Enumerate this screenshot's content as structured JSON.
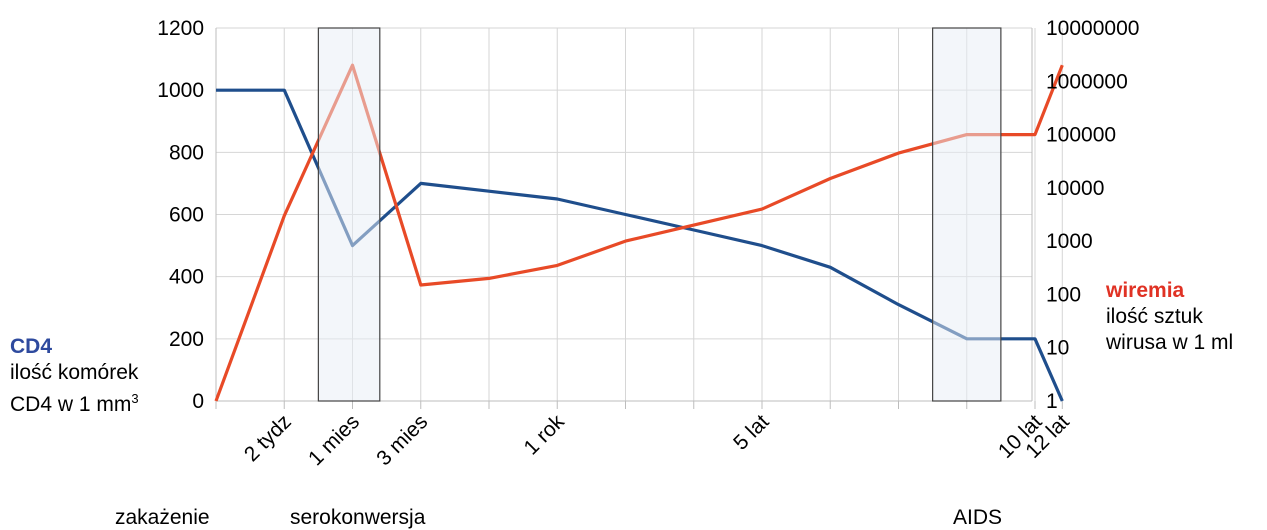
{
  "chart_data": {
    "type": "line",
    "categories": [
      "",
      "2 tydz",
      "1 mies",
      "3 mies",
      "",
      "1 rok",
      "",
      "",
      "5 lat",
      "",
      "",
      "",
      "10 lat",
      "12 lat"
    ],
    "x_positions": [
      0,
      1,
      2,
      3,
      4,
      5,
      6,
      7,
      8,
      9,
      10,
      11,
      12,
      12.4
    ],
    "series": [
      {
        "axis": "left",
        "color": "#1f4e8c",
        "x": [
          0,
          1,
          2,
          3,
          4,
          5,
          6,
          7,
          8,
          9,
          10,
          11,
          12,
          12.4
        ],
        "values": [
          1000,
          1000,
          500,
          700,
          675,
          650,
          600,
          550,
          500,
          430,
          310,
          200,
          200,
          0
        ]
      },
      {
        "axis": "right",
        "color": "#e84a27",
        "x": [
          0,
          1,
          2,
          3,
          4,
          5,
          6,
          7,
          8,
          9,
          10,
          11,
          12,
          12.4
        ],
        "values": [
          1,
          3000,
          2000000,
          150,
          200,
          350,
          1000,
          2000,
          4000,
          15000,
          45000,
          100000,
          100000,
          2000000
        ]
      }
    ],
    "y_left": {
      "ylim": [
        0,
        1200
      ],
      "ticks": [
        "0",
        "200",
        "400",
        "600",
        "800",
        "1000",
        "1200"
      ]
    },
    "y_right": {
      "scale": "log",
      "ylim": [
        1,
        10000000
      ],
      "ticks": [
        "1",
        "10",
        "100",
        "1000",
        "10000",
        "100000",
        "1000000",
        "10000000"
      ]
    },
    "shaded_ranges": [
      [
        1.5,
        2.4
      ],
      [
        10.5,
        11.5
      ]
    ],
    "grid": true
  },
  "left_axis": {
    "title": "CD4",
    "line1": "ilość komórek",
    "line2": "CD4 w 1 mm",
    "sup": "3"
  },
  "right_axis": {
    "title": "wiremia",
    "line1": "ilość sztuk",
    "line2": "wirusa w 1 ml"
  },
  "phases": {
    "infection": "zakażenie",
    "seroconversion": "serokonwersja",
    "aids": "AIDS"
  }
}
